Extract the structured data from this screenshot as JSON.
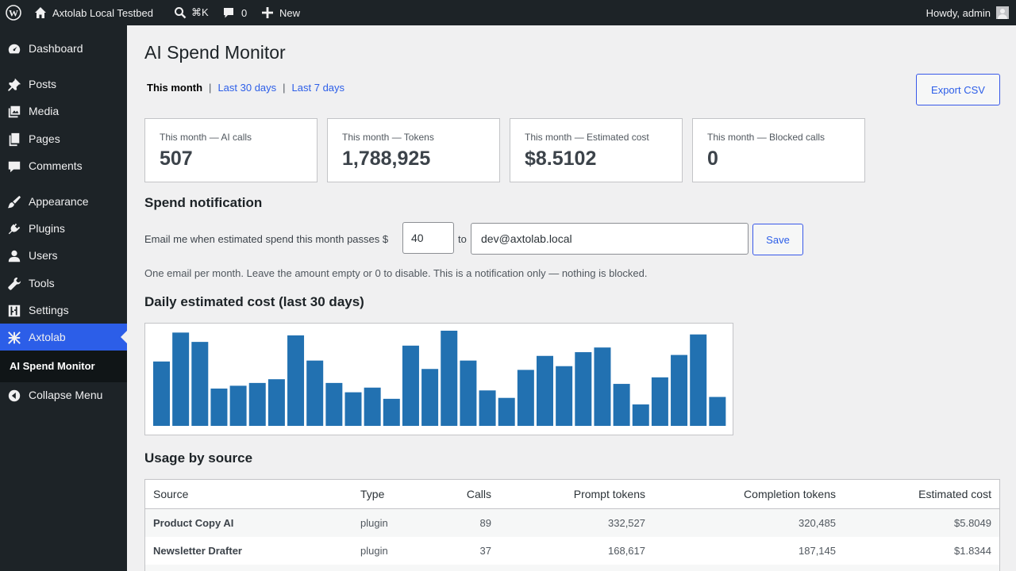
{
  "adminbar": {
    "site_name": "Axtolab Local Testbed",
    "search_shortcut": "⌘K",
    "comments_count": "0",
    "new_label": "New",
    "howdy": "Howdy, admin"
  },
  "sidebar": {
    "items": [
      {
        "label": "Dashboard",
        "icon": "dashboard-icon"
      },
      {
        "label": "Posts",
        "icon": "pushpin-icon"
      },
      {
        "label": "Media",
        "icon": "media-icon"
      },
      {
        "label": "Pages",
        "icon": "pages-icon"
      },
      {
        "label": "Comments",
        "icon": "comment-icon"
      },
      {
        "label": "Appearance",
        "icon": "brush-icon"
      },
      {
        "label": "Plugins",
        "icon": "plugin-icon"
      },
      {
        "label": "Users",
        "icon": "user-icon"
      },
      {
        "label": "Tools",
        "icon": "wrench-icon"
      },
      {
        "label": "Settings",
        "icon": "sliders-icon"
      },
      {
        "label": "Axtolab",
        "icon": "axtolab-logo-icon"
      }
    ],
    "submenu_current": "AI Spend Monitor",
    "collapse_label": "Collapse Menu"
  },
  "page": {
    "title": "AI Spend Monitor",
    "range_current": "This month",
    "range_30": "Last 30 days",
    "range_7": "Last 7 days",
    "export_label": "Export CSV"
  },
  "stats": [
    {
      "label": "This month — AI calls",
      "value": "507"
    },
    {
      "label": "This month — Tokens",
      "value": "1,788,925"
    },
    {
      "label": "This month — Estimated cost",
      "value": "$8.5102"
    },
    {
      "label": "This month — Blocked calls",
      "value": "0"
    }
  ],
  "notification": {
    "heading": "Spend notification",
    "text_before": "Email me when estimated spend this month passes $",
    "amount": "40",
    "text_to": "to",
    "email": "dev@axtolab.local",
    "save_label": "Save",
    "hint": "One email per month. Leave the amount empty or 0 to disable. This is a notification only — nothing is blocked."
  },
  "chart_heading": "Daily estimated cost (last 30 days)",
  "chart_data": {
    "type": "bar",
    "bar_color": "#2271b1",
    "title": "",
    "xlabel": "",
    "ylabel": "",
    "grid": false,
    "values": [
      0.69,
      1.0,
      0.9,
      0.4,
      0.43,
      0.46,
      0.5,
      0.97,
      0.7,
      0.46,
      0.36,
      0.41,
      0.29,
      0.86,
      0.61,
      1.02,
      0.7,
      0.38,
      0.3,
      0.6,
      0.75,
      0.64,
      0.79,
      0.84,
      0.45,
      0.23,
      0.52,
      0.76,
      0.98,
      0.31
    ]
  },
  "usage": {
    "heading": "Usage by source",
    "columns": [
      "Source",
      "Type",
      "Calls",
      "Prompt tokens",
      "Completion tokens",
      "Estimated cost"
    ],
    "rows": [
      [
        "Product Copy AI",
        "plugin",
        "89",
        "332,527",
        "320,485",
        "$5.8049"
      ],
      [
        "Newsletter Drafter",
        "plugin",
        "37",
        "168,617",
        "187,145",
        "$1.8344"
      ]
    ]
  },
  "colors": {
    "accent": "#2c5ee8",
    "admin_dark": "#1d2327"
  }
}
